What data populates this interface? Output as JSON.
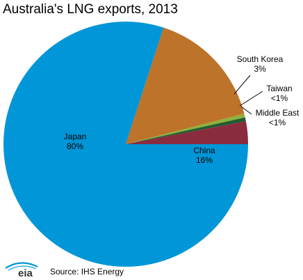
{
  "title": "Australia's LNG exports, 2013",
  "chart_data": {
    "type": "pie",
    "title": "Australia's LNG exports, 2013",
    "slices": [
      {
        "name": "Japan",
        "value_label": "80%",
        "value": 80,
        "color": "#0096D7"
      },
      {
        "name": "China",
        "value_label": "16%",
        "value": 16,
        "color": "#BD732A"
      },
      {
        "name": "Middle East",
        "value_label": "<1%",
        "value": 0.5,
        "color": "#8FB03E"
      },
      {
        "name": "Taiwan",
        "value_label": "<1%",
        "value": 0.5,
        "color": "#1F5C2E"
      },
      {
        "name": "South Korea",
        "value_label": "3%",
        "value": 3,
        "color": "#8B2B3E"
      }
    ]
  },
  "footer": {
    "logo_text": "eia",
    "source": "Source: IHS Energy"
  }
}
